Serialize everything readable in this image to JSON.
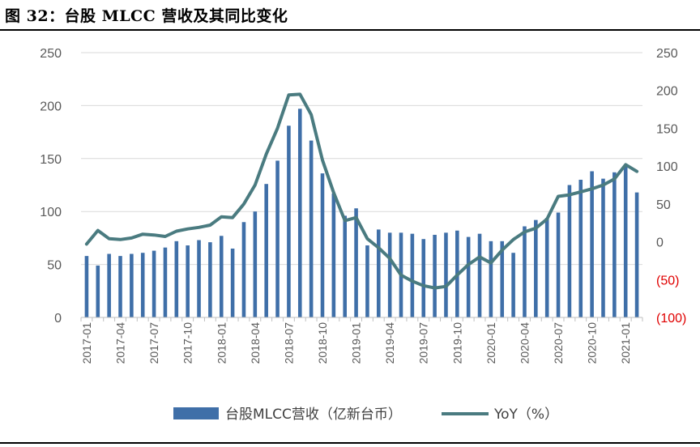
{
  "title": "图 32：台股 MLCC 营收及其同比变化",
  "chart_data": {
    "type": "bar+line",
    "categories": [
      "2017-01",
      "2017-02",
      "2017-03",
      "2017-04",
      "2017-05",
      "2017-06",
      "2017-07",
      "2017-08",
      "2017-09",
      "2017-10",
      "2017-11",
      "2017-12",
      "2018-01",
      "2018-02",
      "2018-03",
      "2018-04",
      "2018-05",
      "2018-06",
      "2018-07",
      "2018-08",
      "2018-09",
      "2018-10",
      "2018-11",
      "2018-12",
      "2019-01",
      "2019-02",
      "2019-03",
      "2019-04",
      "2019-05",
      "2019-06",
      "2019-07",
      "2019-08",
      "2019-09",
      "2019-10",
      "2019-11",
      "2019-12",
      "2020-01",
      "2020-02",
      "2020-03",
      "2020-04",
      "2020-05",
      "2020-06",
      "2020-07",
      "2020-08",
      "2020-09",
      "2020-10",
      "2020-11",
      "2020-12",
      "2021-01",
      "2021-02"
    ],
    "x_tick_labels": [
      "2017-01",
      "2017-04",
      "2017-07",
      "2017-10",
      "2018-01",
      "2018-04",
      "2018-07",
      "2018-10",
      "2019-01",
      "2019-04",
      "2019-07",
      "2019-10",
      "2020-01",
      "2020-04",
      "2020-07",
      "2020-10",
      "2021-01"
    ],
    "series": [
      {
        "name": "台股MLCC营收（亿新台币）",
        "type": "bar",
        "axis": "left",
        "color": "#3f6fa8",
        "values": [
          58,
          49,
          60,
          58,
          60,
          61,
          63,
          66,
          72,
          68,
          73,
          71,
          77,
          65,
          90,
          100,
          126,
          148,
          181,
          197,
          167,
          136,
          117,
          96,
          103,
          68,
          83,
          80,
          80,
          79,
          74,
          78,
          80,
          82,
          76,
          79,
          72,
          72,
          61,
          86,
          92,
          94,
          99,
          125,
          130,
          138,
          131,
          137,
          143,
          118
        ]
      },
      {
        "name": "YoY（%）",
        "type": "line",
        "axis": "right",
        "color": "#4a7b80",
        "values": [
          -3,
          15,
          4,
          3,
          5,
          10,
          9,
          7,
          14,
          17,
          19,
          22,
          33,
          32,
          50,
          75,
          116,
          150,
          194,
          195,
          168,
          108,
          65,
          28,
          32,
          4,
          -8,
          -22,
          -44,
          -52,
          -58,
          -61,
          -59,
          -44,
          -30,
          -20,
          -28,
          -11,
          3,
          13,
          18,
          30,
          60,
          62,
          66,
          70,
          75,
          83,
          102,
          93
        ]
      }
    ],
    "y_left": {
      "min": 0,
      "max": 250,
      "step": 50,
      "tick_labels": [
        "0",
        "50",
        "100",
        "150",
        "200",
        "250"
      ]
    },
    "y_right": {
      "min": -100,
      "max": 250,
      "step": 50,
      "tick_labels": [
        "(100)",
        "(50)",
        "0",
        "50",
        "100",
        "150",
        "200",
        "250"
      ],
      "negative_color": "#e00000"
    },
    "grid": "horizontal",
    "legend": "bottom",
    "legend_entries": [
      {
        "label": "台股MLCC营收（亿新台币）",
        "kind": "bar"
      },
      {
        "label": "YoY（%）",
        "kind": "line"
      }
    ]
  }
}
